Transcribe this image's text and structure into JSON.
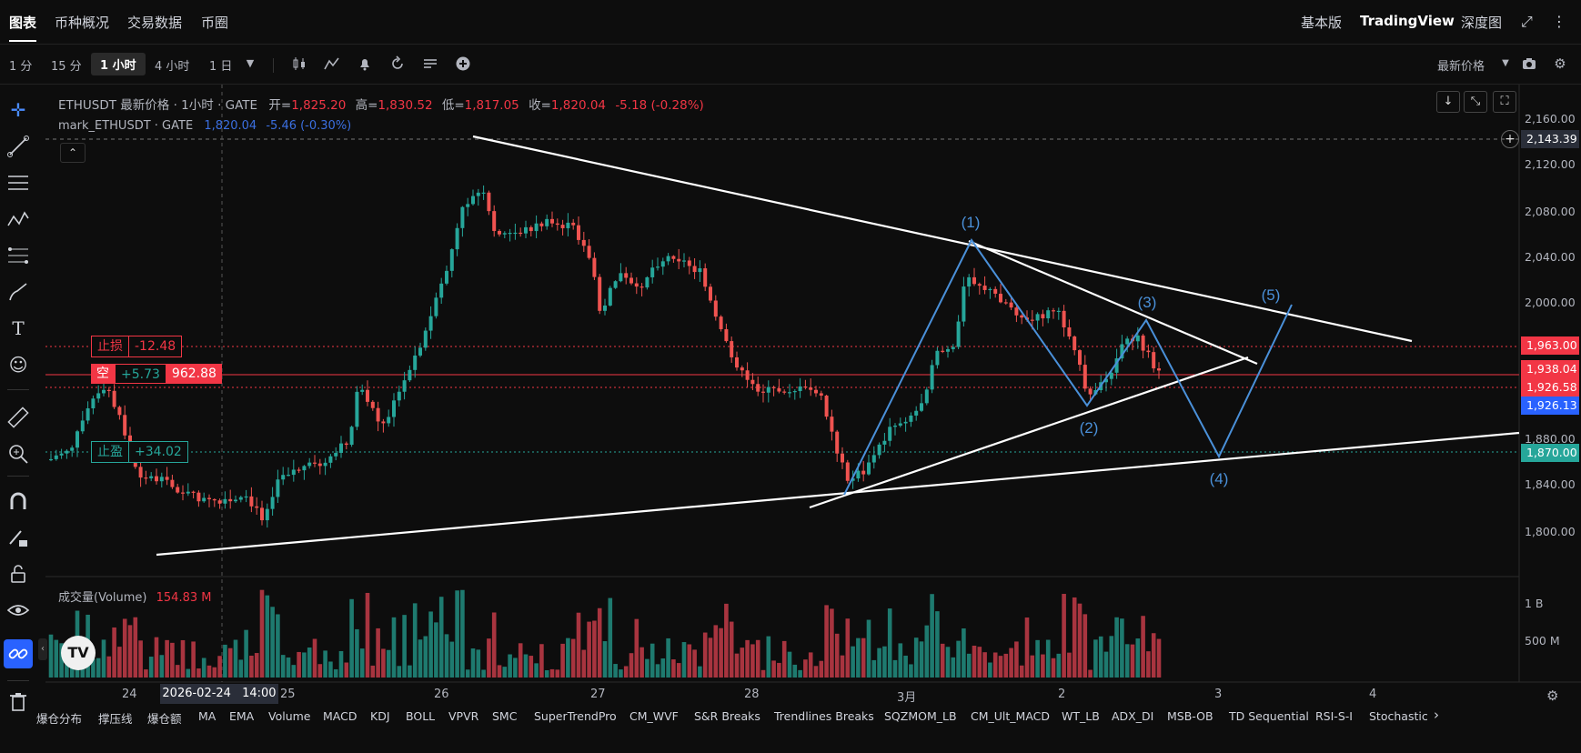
{
  "nav": {
    "tabs": [
      "图表",
      "币种概况",
      "交易数据",
      "币圈"
    ],
    "right": [
      "基本版",
      "TradingView",
      "深度图"
    ]
  },
  "toolbar": {
    "intervals": [
      "1 分",
      "15 分",
      "1 小时",
      "4 小时",
      "1 日"
    ],
    "active_interval": "1 小时",
    "price_type": "最新价格"
  },
  "legend": {
    "symbol_line": "ETHUSDT 最新价格 · 1小时 · GATE",
    "open_label": "开=",
    "open": "1,825.20",
    "high_label": "高=",
    "high": "1,830.52",
    "low_label": "低=",
    "low": "1,817.05",
    "close_label": "收=",
    "close": "1,820.04",
    "change": "-5.18 (-0.28%)",
    "mark_label": "mark_ETHUSDT · GATE",
    "mark_value": "1,820.04",
    "mark_change": "-5.46 (-0.30%)"
  },
  "price_axis": {
    "ticks": [
      "2,160.00",
      "2,120.00",
      "2,080.00",
      "2,040.00",
      "2,000.00",
      "1,960.00",
      "1,920.00",
      "1,880.00",
      "1,840.00",
      "1,800.00"
    ],
    "crosshair_label": "2,143.39",
    "labels": {
      "stop_loss": "1,963.00",
      "short_entry": "1,938.04",
      "last": "1,926.58",
      "mark": "1,926.13",
      "take_profit": "1,870.00"
    }
  },
  "orders": {
    "stop_loss_label": "止损",
    "stop_loss_value": "-12.48",
    "short_label": "空",
    "short_pnl": "+5.73",
    "short_price": "962.88",
    "take_profit_label": "止盈",
    "take_profit_value": "+34.02"
  },
  "waves": [
    "(1)",
    "(2)",
    "(3)",
    "(4)",
    "(5)"
  ],
  "volume": {
    "label": "成交量(Volume)",
    "value": "154.83 M",
    "ticks": [
      "1 B",
      "500 M"
    ]
  },
  "time_axis": {
    "labels": [
      "24",
      "25",
      "26",
      "27",
      "28",
      "3月",
      "2",
      "3",
      "4"
    ],
    "crosshair_date": "2026-02-24",
    "crosshair_time": "14:00"
  },
  "indicators": [
    "爆仓分布",
    "撑压线",
    "爆仓额",
    "MA",
    "EMA",
    "Volume",
    "MACD",
    "KDJ",
    "BOLL",
    "VPVR",
    "SMC",
    "SuperTrendPro",
    "CM_WVF",
    "S&R Breaks",
    "Trendlines Breaks",
    "SQZMOM_LB",
    "CM_Ult_MACD",
    "WT_LB",
    "ADX_DI",
    "MSB-OB",
    "TD Sequential",
    "RSI-S-I",
    "Stochastic"
  ],
  "colors": {
    "up": "#26a69a",
    "down": "#ef5350",
    "accent": "#2962ff",
    "wave": "#4a90d9",
    "trend": "#ffffff"
  }
}
